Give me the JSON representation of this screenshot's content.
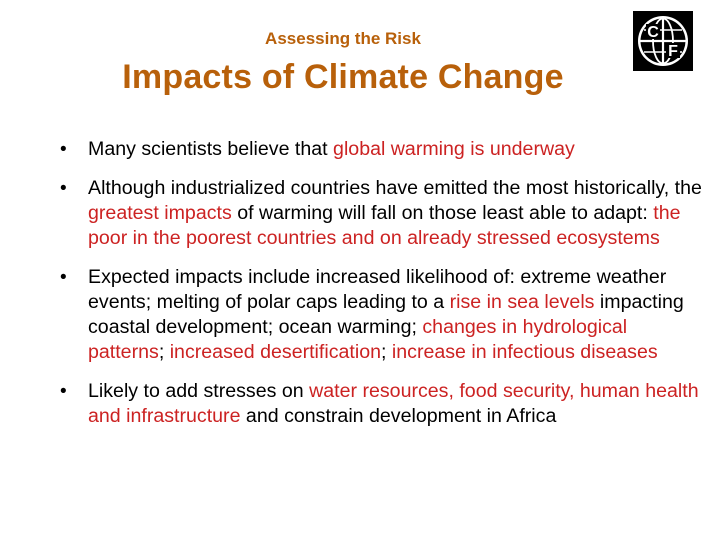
{
  "header": {
    "subtitle": "Assessing the Risk",
    "title": "Impacts of Climate Change",
    "logo_letters": [
      "C",
      "F"
    ]
  },
  "colors": {
    "title": "#b8600a",
    "highlight": "#cc2222",
    "text": "#000000"
  },
  "bullets": [
    {
      "segments": [
        {
          "text": "Many scientists believe that ",
          "hl": false
        },
        {
          "text": "global warming is underway",
          "hl": true
        }
      ]
    },
    {
      "segments": [
        {
          "text": "Although industrialized countries have emitted the most historically, the ",
          "hl": false
        },
        {
          "text": "greatest impacts",
          "hl": true
        },
        {
          "text": " of warming will fall on those least able to adapt: ",
          "hl": false
        },
        {
          "text": "the poor in the poorest countries and on already stressed ecosystems",
          "hl": true
        }
      ]
    },
    {
      "segments": [
        {
          "text": "Expected impacts include increased likelihood of: extreme weather events; melting of polar caps leading to a ",
          "hl": false
        },
        {
          "text": "rise in sea levels",
          "hl": true
        },
        {
          "text": " impacting coastal development; ocean warming; ",
          "hl": false
        },
        {
          "text": "changes in hydrological patterns",
          "hl": true
        },
        {
          "text": "; ",
          "hl": false
        },
        {
          "text": "increased desertification",
          "hl": true
        },
        {
          "text": "; ",
          "hl": false
        },
        {
          "text": "increase in infectious diseases",
          "hl": true
        }
      ]
    },
    {
      "segments": [
        {
          "text": "Likely to add stresses on ",
          "hl": false
        },
        {
          "text": "water resources, food security, human health and infrastructure",
          "hl": true
        },
        {
          "text": " and constrain development in Africa",
          "hl": false
        }
      ]
    }
  ]
}
